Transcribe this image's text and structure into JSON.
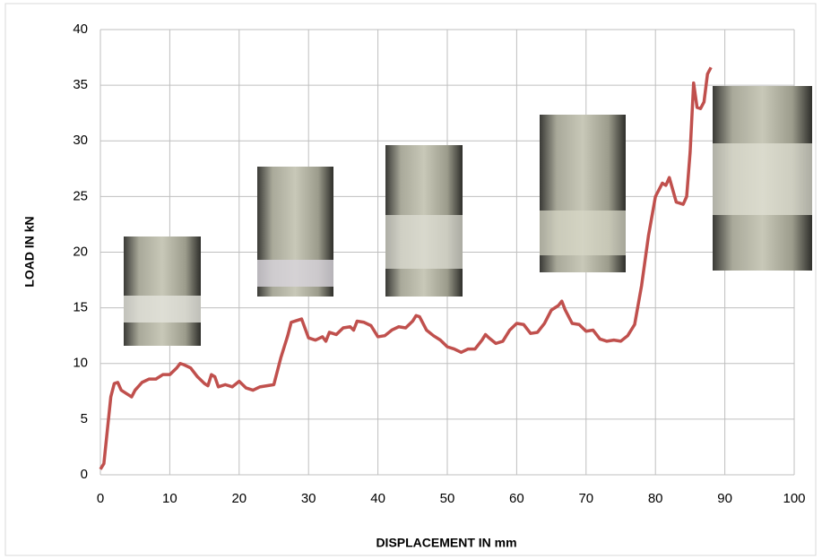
{
  "chart_data": {
    "type": "line",
    "xlabel": "DISPLACEMENT IN mm",
    "ylabel": "LOAD IN kN",
    "x": [
      0,
      0.5,
      1,
      1.5,
      2,
      2.5,
      3,
      4,
      4.5,
      5,
      6,
      7,
      8,
      9,
      10,
      11,
      11.5,
      12,
      13,
      14,
      15,
      15.5,
      16,
      16.5,
      17,
      18,
      19,
      20,
      21,
      22,
      23,
      24,
      25,
      26,
      27,
      27.5,
      28,
      29,
      30,
      31,
      32,
      32.5,
      33,
      34,
      35,
      36,
      36.5,
      37,
      38,
      39,
      40,
      41,
      42,
      43,
      44,
      45,
      45.5,
      46,
      47,
      48,
      49,
      50,
      51,
      52,
      53,
      54,
      55,
      55.5,
      56,
      57,
      58,
      59,
      60,
      61,
      62,
      63,
      64,
      65,
      66,
      66.5,
      67,
      68,
      69,
      70,
      71,
      72,
      73,
      74,
      75,
      76,
      77,
      78,
      79,
      80,
      81,
      81.5,
      82,
      83,
      84,
      84.5,
      85,
      85.5,
      86,
      86.5,
      87,
      87.5,
      88
    ],
    "values": [
      0.5,
      1,
      4,
      7,
      8.2,
      8.3,
      7.6,
      7.2,
      7,
      7.6,
      8.3,
      8.6,
      8.6,
      9,
      9,
      9.6,
      10,
      9.9,
      9.6,
      8.8,
      8.2,
      8,
      9,
      8.8,
      7.9,
      8.1,
      7.9,
      8.4,
      7.8,
      7.6,
      7.9,
      8,
      8.1,
      10.5,
      12.5,
      13.7,
      13.8,
      14,
      12.3,
      12.1,
      12.4,
      12,
      12.8,
      12.6,
      13.2,
      13.3,
      13,
      13.8,
      13.7,
      13.4,
      12.4,
      12.5,
      13,
      13.3,
      13.2,
      13.8,
      14.3,
      14.2,
      13,
      12.5,
      12.1,
      11.5,
      11.3,
      11,
      11.3,
      11.3,
      12.1,
      12.6,
      12.3,
      11.8,
      12,
      13,
      13.6,
      13.5,
      12.7,
      12.8,
      13.6,
      14.8,
      15.2,
      15.6,
      14.8,
      13.6,
      13.5,
      12.9,
      13,
      12.2,
      12,
      12.1,
      12,
      12.5,
      13.5,
      17,
      21.5,
      25,
      26.2,
      26,
      26.7,
      24.5,
      24.3,
      25,
      29,
      35.2,
      33,
      32.9,
      33.5,
      36,
      36.6
    ],
    "color": "#c0504d",
    "xlim": [
      0,
      100
    ],
    "xticks": [
      0,
      10,
      20,
      30,
      40,
      50,
      60,
      70,
      80,
      90,
      100
    ],
    "ylim": [
      0,
      40
    ],
    "yticks": [
      0,
      5,
      10,
      15,
      20,
      25,
      30,
      35,
      40
    ],
    "grid": true
  }
}
